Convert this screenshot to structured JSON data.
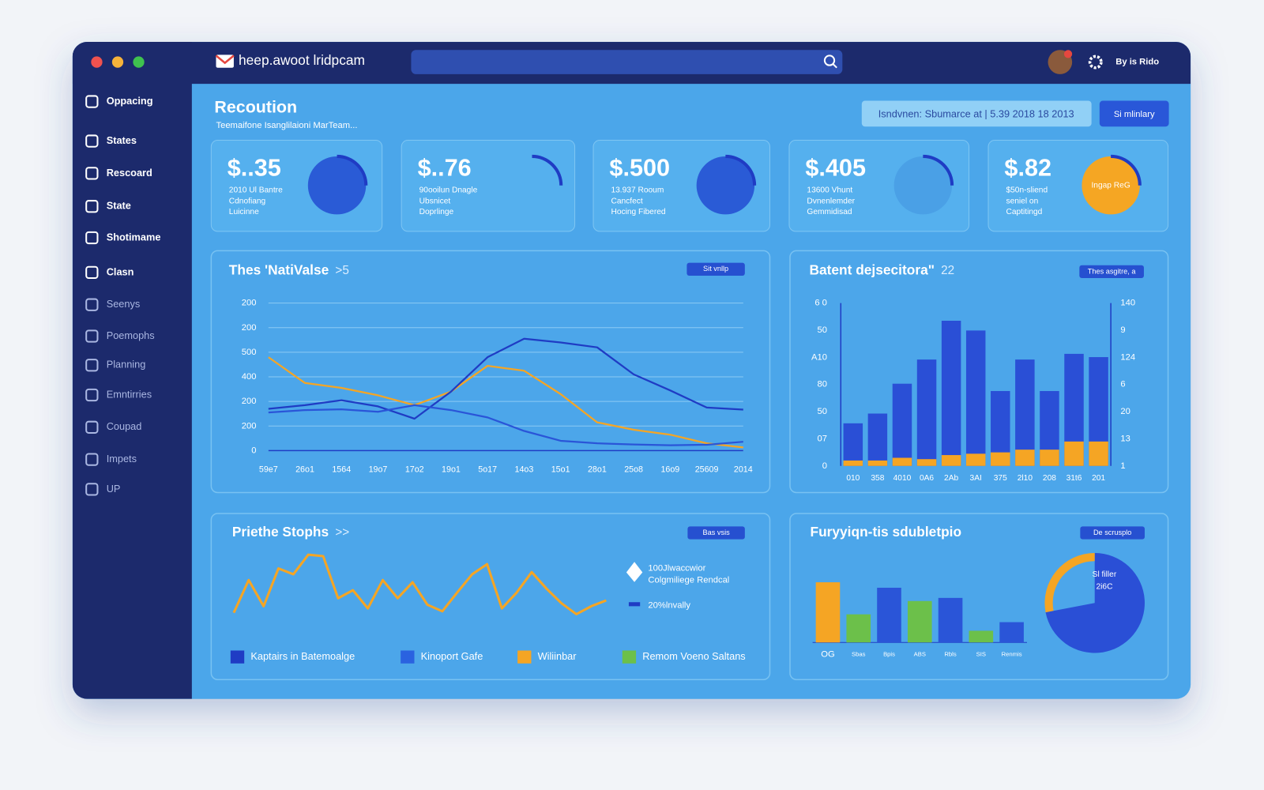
{
  "app": {
    "brand": "heep.awoot lridpcam",
    "user": "By is Rido",
    "sidebar": [
      "Oppacing",
      "States",
      "Rescoard",
      "State",
      "Shotimame",
      "Clasn",
      "Seenys",
      "Poemophs",
      "Planning",
      "Emntirries",
      "Coupad",
      "Impets",
      "UP"
    ],
    "page_title": "Recoution",
    "page_subtitle": "Teemaifone Isanglilaioni MarTeam...",
    "filter": "Isndvnen: Sbumarce at | 5.39 2018 18 2013",
    "summary_button": "Si mlinlary",
    "kpis": [
      {
        "value": "$..35",
        "lines": [
          "2010 Ul Bantre",
          "Cdnofiang",
          "Luicinne"
        ]
      },
      {
        "value": "$..76",
        "lines": [
          "90ooilun Dnagle",
          "Ubsnicet",
          "Doprlinge"
        ]
      },
      {
        "value": "$.500",
        "lines": [
          "13.937 Rooum",
          "Cancfect",
          "Hocing Fibered"
        ]
      },
      {
        "value": "$.405",
        "lines": [
          "13600 Vhunt",
          "Dvnenlemder",
          "Gemmidisad"
        ]
      },
      {
        "value": "$.82",
        "lines": [
          "$50n-sliend",
          "seniel on",
          "Captitingd"
        ],
        "icon_text": "Ingap ReG"
      }
    ]
  },
  "chart_data": [
    {
      "type": "line",
      "title": "Thes 'NatiValse",
      "title_suffix": ">5",
      "badge": "Sit vnllp",
      "categories": [
        "59e7",
        "26o1",
        "1564",
        "19o7",
        "17o2",
        "19o1",
        "5o17",
        "14o3",
        "15o1",
        "28o1",
        "25o8",
        "16o9",
        "25609",
        "2014"
      ],
      "ylim": [
        0,
        600
      ],
      "yticks": [
        0,
        {
          "value": 100,
          "label": "200"
        },
        200,
        {
          "value": 300,
          "label": "400"
        },
        {
          "value": 400,
          "label": "500"
        },
        {
          "value": 500,
          "label": "200"
        },
        {
          "value": 600,
          "label": "200"
        }
      ],
      "grid": true,
      "series": [
        {
          "color": "#f5a524",
          "values": [
            380,
            275,
            255,
            225,
            185,
            240,
            345,
            325,
            230,
            115,
            85,
            65,
            30,
            13
          ]
        },
        {
          "color": "#1f3cc4",
          "values": [
            170,
            185,
            205,
            180,
            130,
            240,
            380,
            455,
            440,
            420,
            310,
            245,
            175,
            167
          ]
        },
        {
          "color": "#2a55d8",
          "values": [
            155,
            165,
            168,
            158,
            185,
            165,
            135,
            80,
            40,
            30,
            25,
            22,
            24,
            36
          ]
        }
      ]
    },
    {
      "type": "bar",
      "title": "Batent dejsecitora\"",
      "title_suffix": "22",
      "badge": "Thes asgitre, a",
      "categories": [
        "010",
        "358",
        "4010",
        "0A6",
        "2Ab",
        "3AI",
        "375",
        "2l10",
        "208",
        "31t6",
        "201"
      ],
      "ylim": [
        0,
        60
      ],
      "yticks": [
        0,
        {
          "value": 10,
          "label": "07"
        },
        {
          "value": 20,
          "label": "50"
        },
        {
          "value": 30,
          "label": "80"
        },
        {
          "value": 40,
          "label": "A10"
        },
        50,
        {
          "value": 60,
          "label": "6 0"
        }
      ],
      "y2lim": [
        0,
        60
      ],
      "y2ticks": [
        {
          "value": 0,
          "label": "1"
        },
        {
          "value": 10,
          "label": "13"
        },
        20,
        {
          "value": 30,
          "label": "6"
        },
        {
          "value": 40,
          "label": "124"
        },
        {
          "value": 50,
          "label": "9"
        },
        {
          "value": 60,
          "label": "140"
        }
      ],
      "series": [
        {
          "color": "#2a4fd6",
          "values": [
            15.7,
            19.3,
            30.3,
            39.2,
            53.5,
            49.9,
            27.6,
            39.2,
            27.6,
            41.3,
            40.1
          ]
        },
        {
          "color": "#f5a524",
          "values": [
            2,
            2,
            3,
            2.5,
            4,
            4.5,
            5,
            6,
            6,
            9,
            9
          ]
        }
      ]
    },
    {
      "type": "line",
      "title": "Priethe Stophs",
      "title_suffix": ">>",
      "badge": "Bas vsis",
      "ylim": [
        0,
        100
      ],
      "series": [
        {
          "color": "#f5a524",
          "values": [
            11,
            56,
            20,
            72,
            64,
            91,
            89,
            31,
            42,
            17,
            56,
            31,
            53,
            22,
            13,
            39,
            64,
            78,
            17,
            39,
            67,
            44,
            24,
            9,
            20,
            28
          ]
        }
      ],
      "annotations": [
        "100Jlwaccwior",
        "Colgmiliege Rendcal",
        "20%lnvally"
      ],
      "legend_items": [
        {
          "name": "Kaptairs in Batemoalge",
          "color": "#1f3cc4"
        },
        {
          "name": "Kinoport Gafe",
          "color": "#2a62e0"
        },
        {
          "name": "Wiliinbar",
          "color": "#f5a524"
        },
        {
          "name": "Remom Voeno Saltans",
          "color": "#6cc04a"
        }
      ]
    },
    {
      "type": "bar",
      "title": "Furyyiqn-tis sdubletpio",
      "badge": "De scrusplo",
      "categories": [
        "OG",
        "Sbas",
        "Bpis",
        "ABS",
        "Rbls",
        "SIS",
        "Renmis"
      ],
      "ylim": [
        0,
        100
      ],
      "values": [
        77,
        36,
        70,
        53,
        57,
        15,
        26
      ],
      "colors": [
        "#f5a524",
        "#6cc04a",
        "#2a55d8",
        "#6cc04a",
        "#2a55d8",
        "#6cc04a",
        "#2a55d8"
      ]
    },
    {
      "type": "pie",
      "values": [
        72,
        28
      ],
      "colors": [
        "#2a4fd6",
        "#f5a524"
      ],
      "center_labels": [
        "Sl filler",
        "2i6C"
      ]
    }
  ]
}
